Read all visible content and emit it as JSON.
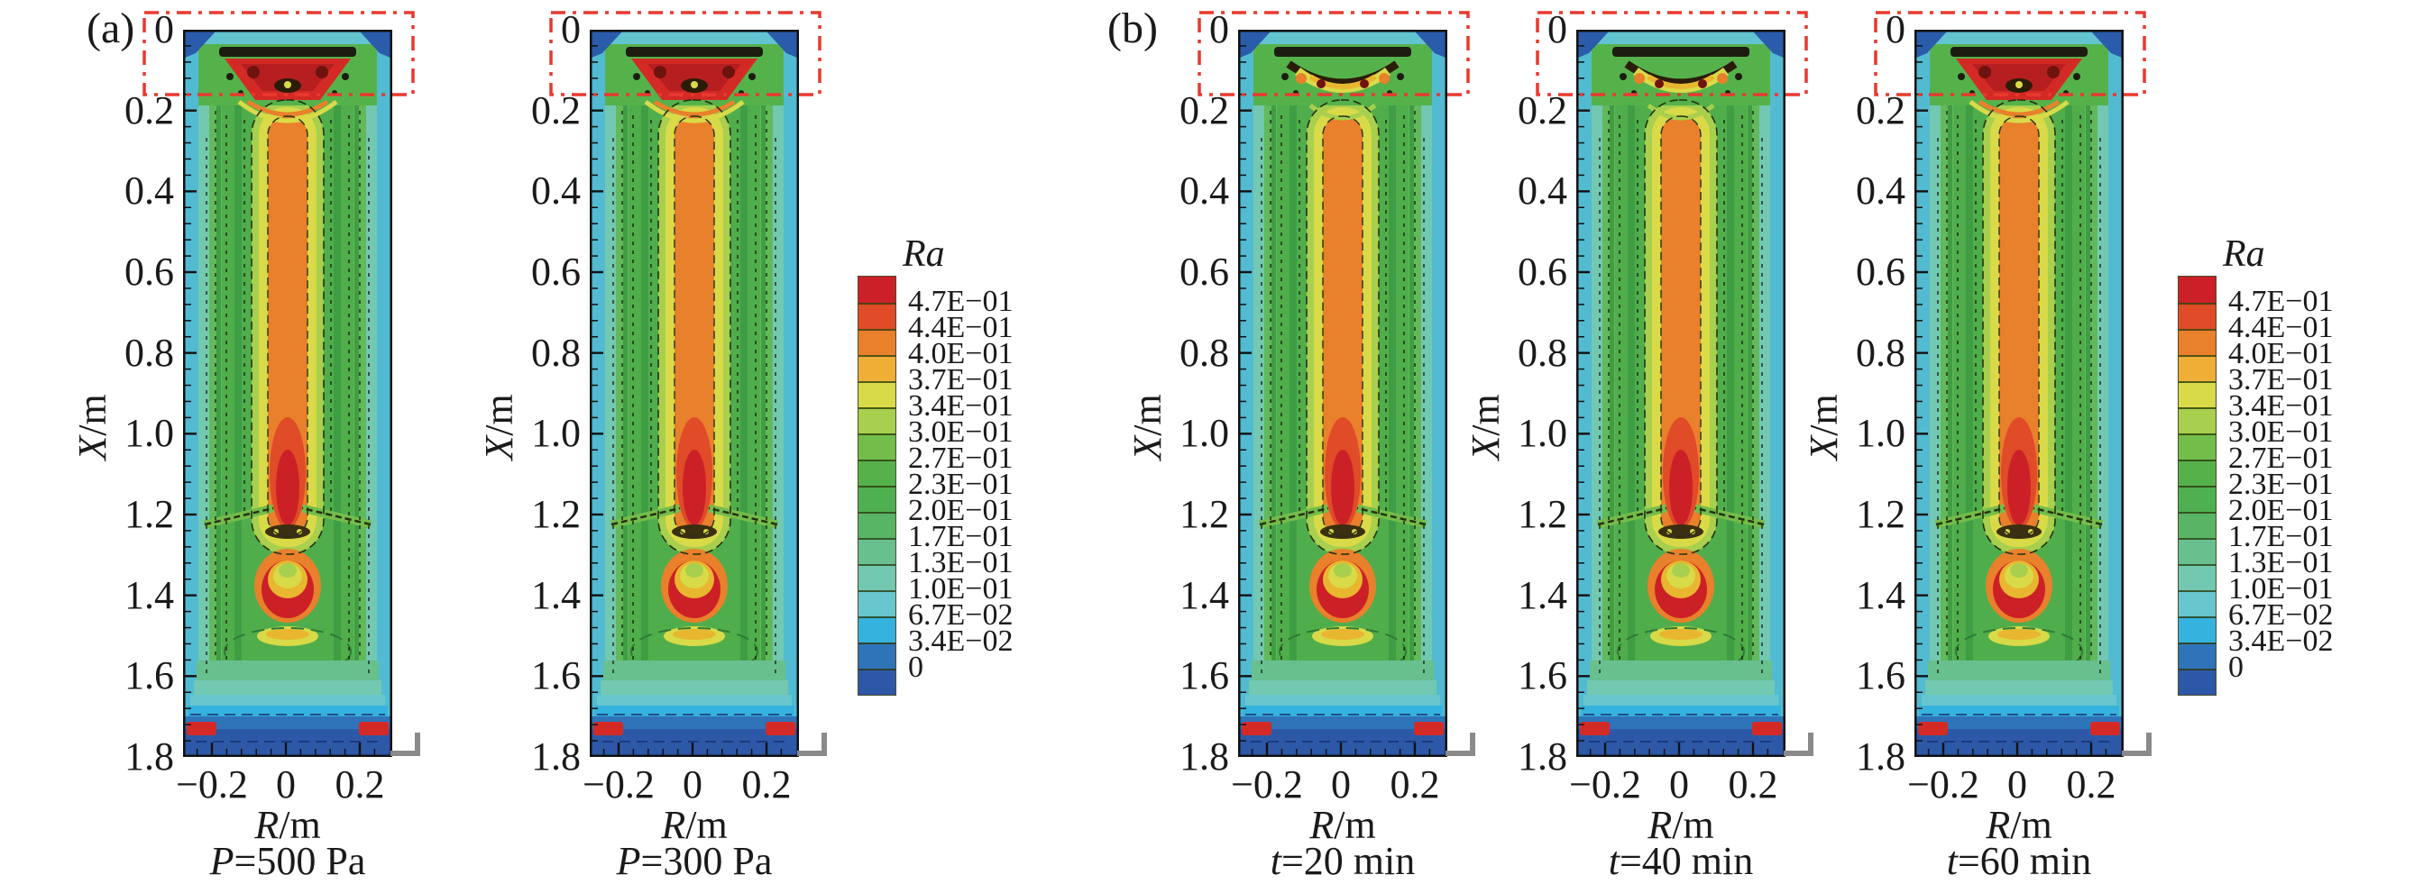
{
  "figure": {
    "panels": [
      {
        "label": "(a)"
      },
      {
        "label": "(b)"
      }
    ]
  },
  "axes": {
    "ylabel_var": "X",
    "ylabel_rest": "/m",
    "xlabel_var": "R",
    "xlabel_rest": "/m",
    "y_ticks": [
      "0",
      "0.2",
      "0.4",
      "0.6",
      "0.8",
      "1.0",
      "1.2",
      "1.4",
      "1.6",
      "1.8"
    ],
    "x_ticks": [
      "−0.2",
      "0",
      "0.2"
    ]
  },
  "plots": [
    {
      "panel": "(a)",
      "caption_var": "P",
      "caption_rest": "=500 Pa",
      "top_variant": "red_core"
    },
    {
      "panel": "(a)",
      "caption_var": "P",
      "caption_rest": "=300 Pa",
      "top_variant": "red_core"
    },
    {
      "panel": "(b)",
      "caption_var": "t",
      "caption_rest": "=20 min",
      "top_variant": "yellow_arc"
    },
    {
      "panel": "(b)",
      "caption_var": "t",
      "caption_rest": "=40 min",
      "top_variant": "yellow_arc"
    },
    {
      "panel": "(b)",
      "caption_var": "t",
      "caption_rest": "=60 min",
      "top_variant": "red_core"
    }
  ],
  "colorbar": {
    "title": "Ra",
    "labels": [
      "4.7E−01",
      "4.4E−01",
      "4.0E−01",
      "3.7E−01",
      "3.4E−01",
      "3.0E−01",
      "2.7E−01",
      "2.3E−01",
      "2.0E−01",
      "1.7E−01",
      "1.3E−01",
      "1.0E−01",
      "6.7E−02",
      "3.4E−02",
      "0"
    ],
    "colors": [
      "#cb2027",
      "#e04b28",
      "#e9802b",
      "#efae36",
      "#d9da48",
      "#a8cf4d",
      "#73bd4a",
      "#55b24b",
      "#4fb051",
      "#59b566",
      "#68c08f",
      "#72c8b0",
      "#68c6ce",
      "#35b2de",
      "#2f73b8",
      "#2d58a7"
    ],
    "roi_color": "#e8392f"
  },
  "chart_data": {
    "type": "heatmap",
    "subtype": "filled-contour-map",
    "legend_title": "Ra",
    "xlabel": "R/m",
    "ylabel": "X/m",
    "xlim": [
      -0.28,
      0.28
    ],
    "ylim": [
      0,
      1.8
    ],
    "y_axis_inverted": true,
    "x_ticks": [
      -0.2,
      0,
      0.2
    ],
    "y_ticks": [
      0,
      0.2,
      0.4,
      0.6,
      0.8,
      1.0,
      1.2,
      1.4,
      1.6,
      1.8
    ],
    "contour_levels": [
      0,
      0.034,
      0.067,
      0.1,
      0.13,
      0.17,
      0.2,
      0.23,
      0.27,
      0.3,
      0.34,
      0.37,
      0.4,
      0.44,
      0.47
    ],
    "level_labels": [
      "4.7E−01",
      "4.4E−01",
      "4.0E−01",
      "3.7E−01",
      "3.4E−01",
      "3.0E−01",
      "2.7E−01",
      "2.3E−01",
      "2.0E−01",
      "1.7E−01",
      "1.3E−01",
      "1.0E−01",
      "6.7E−02",
      "3.4E−02",
      "0"
    ],
    "legend_position": "right-of-panel",
    "grid": false,
    "panels": [
      {
        "label": "(a)",
        "subplots": [
          "P=500 Pa",
          "P=300 Pa"
        ]
      },
      {
        "label": "(b)",
        "subplots": [
          "t=20 min",
          "t=40 min",
          "t=60 min"
        ]
      }
    ],
    "annotations": [
      "red dash-dot rectangle highlighting the region X ≈ 0–0.16 m at the top of every subplot"
    ],
    "features": {
      "high_Ra_core": "central column Ra ≈ 0.40–0.47 from X ≈ 0.2 m to X ≈ 1.2 m at R ≈ 0",
      "secondary_hot_arc": "Ra ≈ 0.44–0.47 arc near X ≈ 1.3–1.45 m",
      "low_Ra_bottom": "Ra ≈ 0–0.067 band at X ≈ 1.7–1.8 m",
      "wall_layers": "Ra ≈ 0.10–0.17 cyan/teal layers along both side walls"
    }
  }
}
